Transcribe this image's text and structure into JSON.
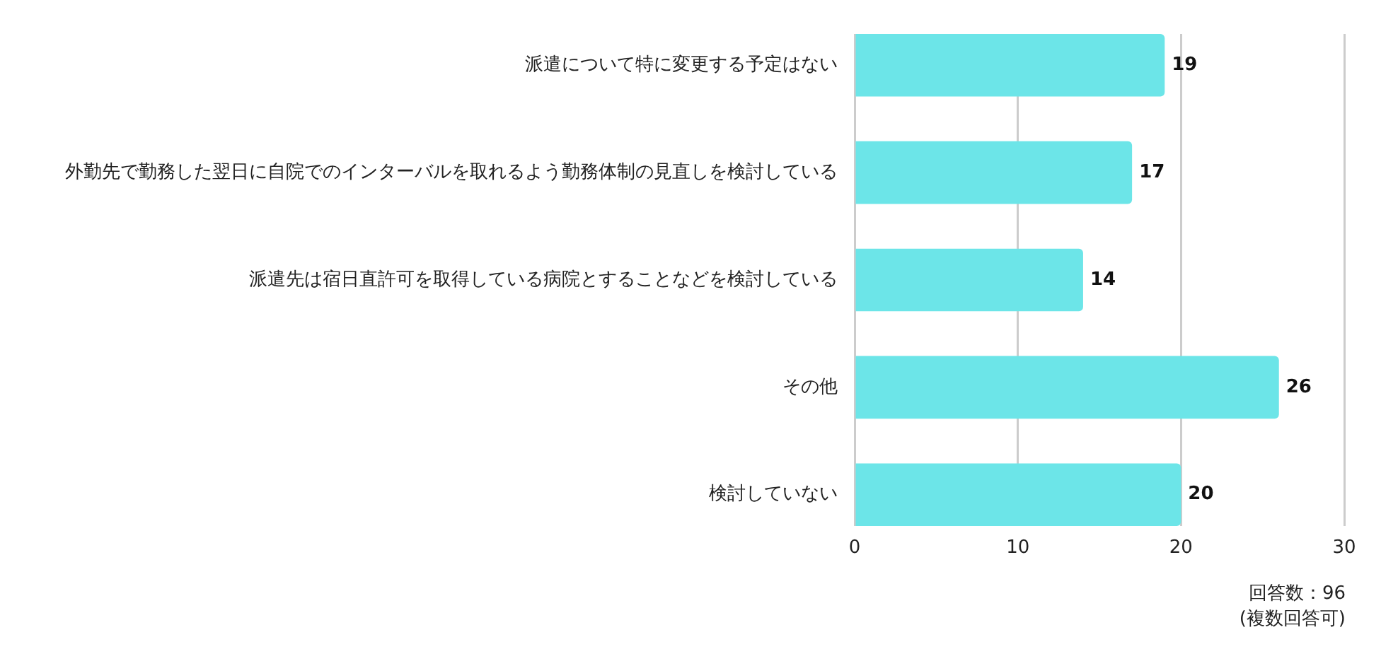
{
  "chart_data": {
    "type": "bar",
    "orientation": "horizontal",
    "categories": [
      "派遣について特に変更する予定はない",
      "外勤先で勤務した翌日に自院でのインターバルを取れるよう勤務体制の見直しを検討している",
      "派遣先は宿日直許可を取得している病院とすることなどを検討している",
      "その他",
      "検討していない"
    ],
    "values": [
      19,
      17,
      14,
      26,
      20
    ],
    "color": "#6ce5e8",
    "xlim": [
      0,
      30
    ],
    "xticks": [
      0,
      10,
      20,
      30
    ],
    "grid": "x",
    "data_labels": true,
    "annotations": [
      "回答数：96",
      "(複数回答可)"
    ]
  }
}
